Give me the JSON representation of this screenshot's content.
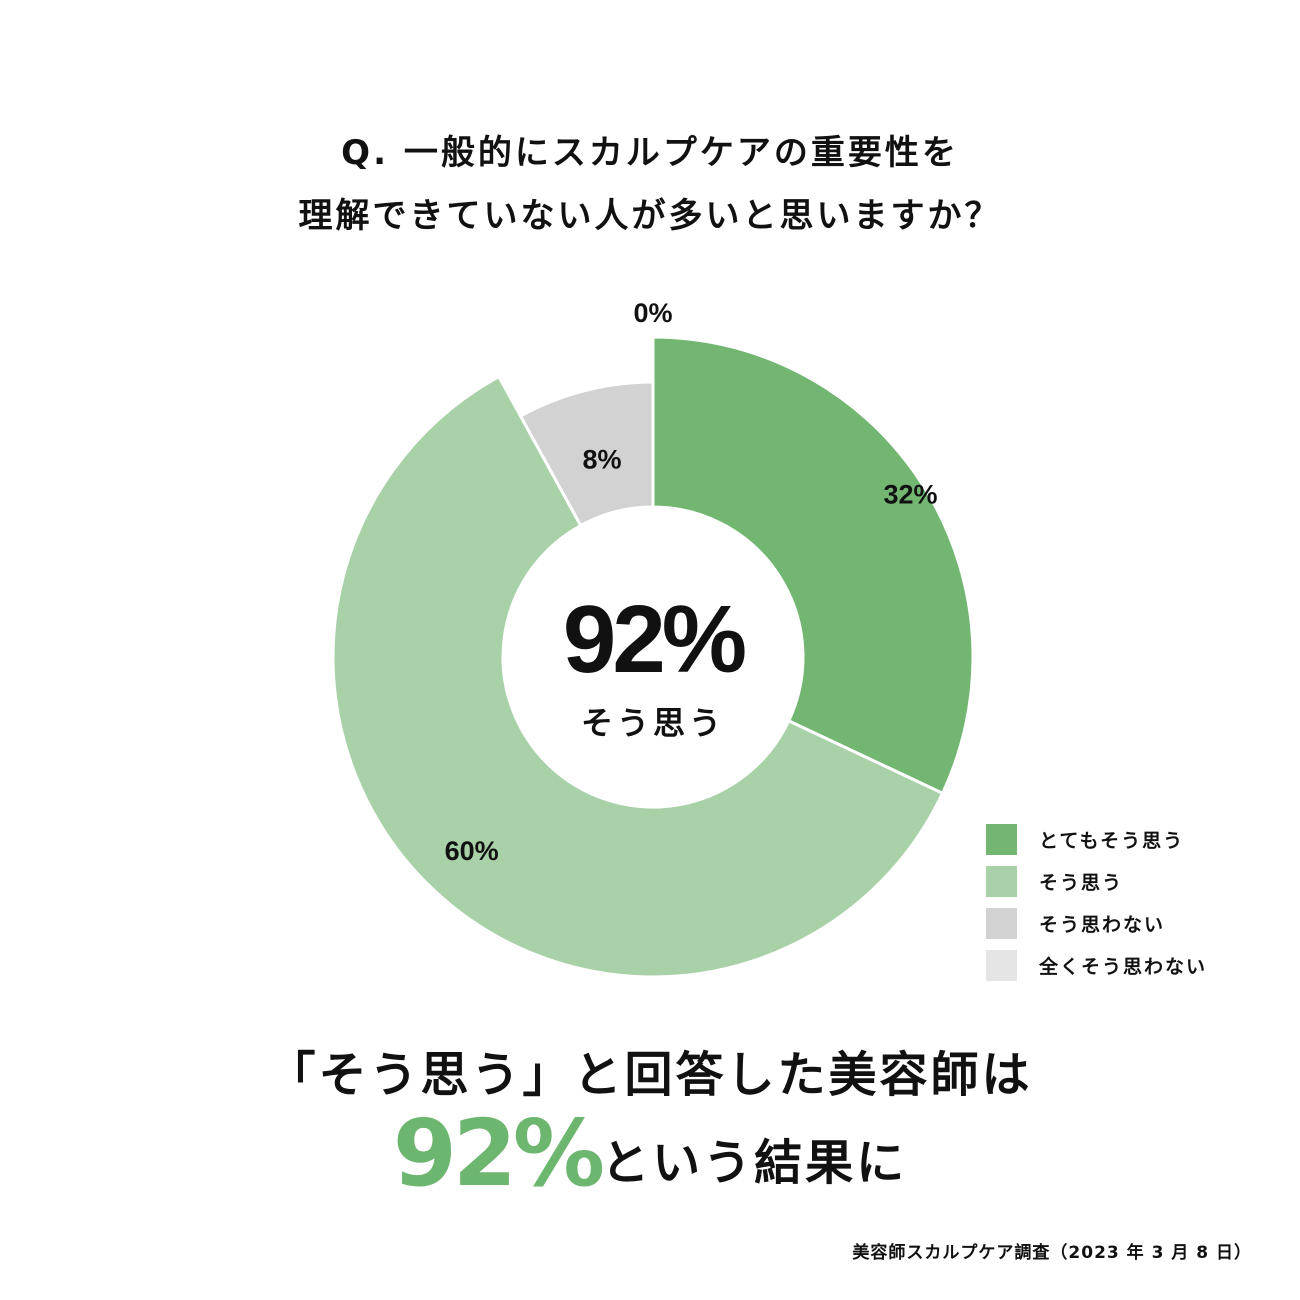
{
  "title": {
    "line1": "Q. 一般的にスカルプケアの重要性を",
    "line2": "理解できていない人が多いと思いますか？"
  },
  "chart_data": {
    "type": "donut",
    "series": [
      {
        "name": "とてもそう思う",
        "value": 32,
        "label": "32%",
        "color": "#72b672"
      },
      {
        "name": "そう思う",
        "value": 60,
        "label": "60%",
        "color": "#a8d1a8"
      },
      {
        "name": "そう思わない",
        "value": 8,
        "label": "8%",
        "color": "#d2d2d2"
      },
      {
        "name": "全くそう思わない",
        "value": 0,
        "label": "0%",
        "color": "#e5e5e5"
      }
    ],
    "center": {
      "value": "92%",
      "caption": "そう思う"
    },
    "legend_position": "bottom-right"
  },
  "summary": {
    "line1": "「そう思う」と回答した美容師は",
    "highlight": "92%",
    "line2_rest": "という結果に"
  },
  "footnote": "美容師スカルプケア調査（2023 年 3 月 8 日）",
  "colors": {
    "accent": "#6db66f"
  }
}
